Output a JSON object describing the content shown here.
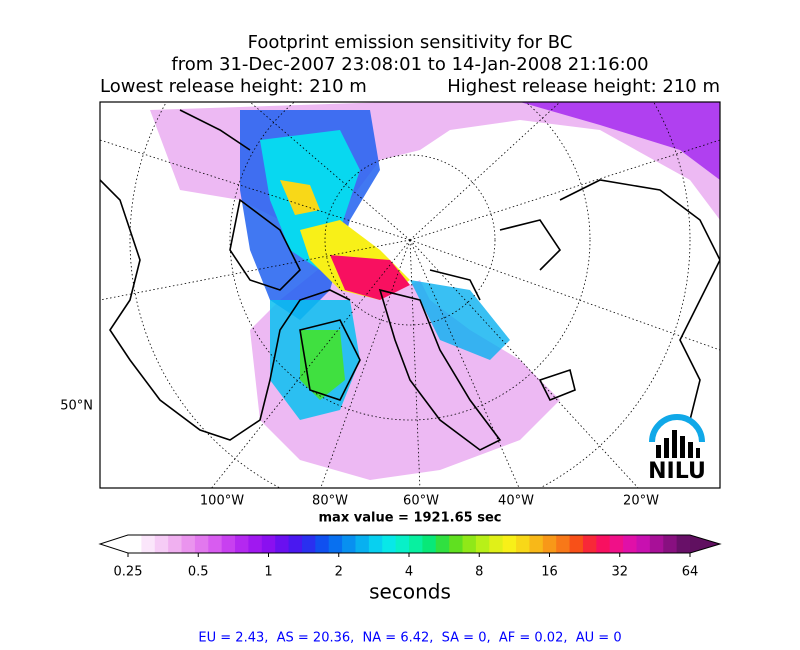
{
  "header": {
    "title": "Footprint emission sensitivity for BC",
    "period": "from 31-Dec-2007 23:08:01 to 14-Jan-2008 21:16:00",
    "lowest": "Lowest release height: 210 m",
    "highest": "Highest release height: 210 m"
  },
  "map": {
    "labels": [
      "100°W",
      "80°W",
      "60°W",
      "40°W",
      "20°W",
      "50°N"
    ],
    "max_value": "max value = 1921.65 sec",
    "logo": "NILU"
  },
  "colorbar": {
    "scale": "log",
    "ticks": [
      0.25,
      0.5,
      1,
      2,
      4,
      8,
      16,
      32,
      64
    ],
    "label": "seconds",
    "colors": [
      "#ffffff",
      "#fbe6fb",
      "#f6ccf6",
      "#f0b0f0",
      "#ea94ee",
      "#e278ee",
      "#d85cf0",
      "#c840f0",
      "#b428f0",
      "#a018f0",
      "#8a10f0",
      "#6a10f0",
      "#4a18f0",
      "#2a30f0",
      "#1050f0",
      "#0870f0",
      "#0890f0",
      "#08b0f0",
      "#08d0f0",
      "#08e8e8",
      "#08f0c8",
      "#08f0a0",
      "#08e878",
      "#30e040",
      "#60e020",
      "#90e818",
      "#b8f018",
      "#e0f018",
      "#f8f018",
      "#f8d818",
      "#f8b818",
      "#f89818",
      "#f87818",
      "#f85018",
      "#f82838",
      "#f81060",
      "#f01088",
      "#e010a8",
      "#c810b0",
      "#a81098",
      "#881080",
      "#681068"
    ],
    "under_color": "#ffffff",
    "over_color": "#601060"
  },
  "footer": "EU = 2.43,  AS = 20.36,  NA = 6.42,  SA = 0,  AF = 0.02,  AU = 0"
}
